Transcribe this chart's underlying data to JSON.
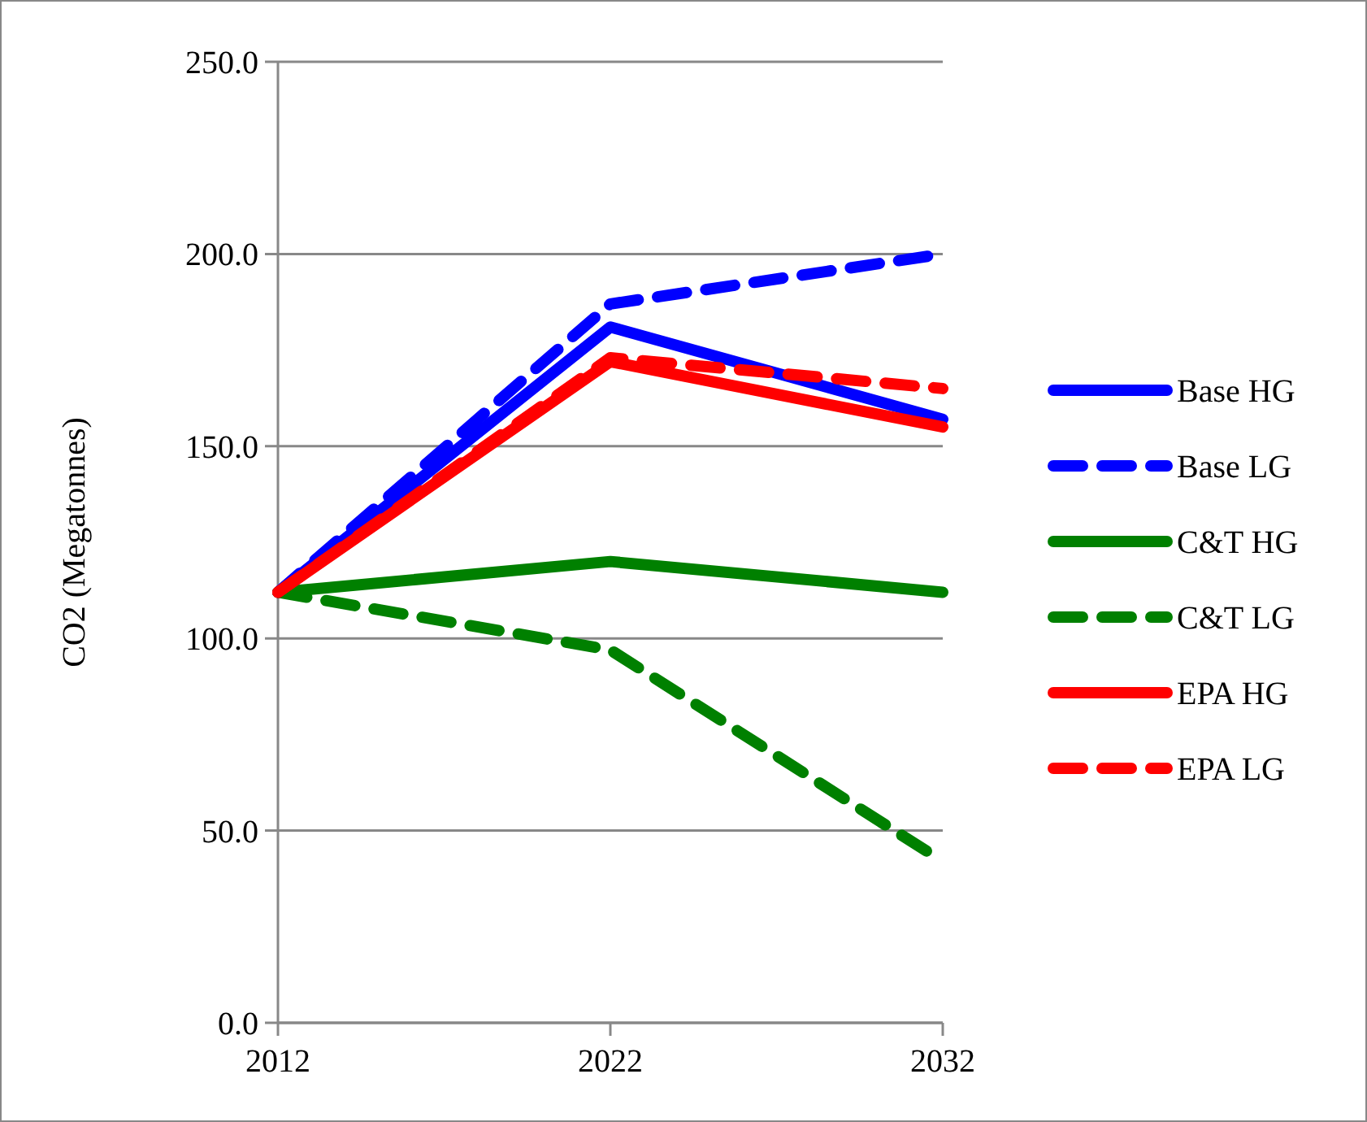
{
  "chart_data": {
    "type": "line",
    "ylabel": "CO2 (Megatonnes)",
    "x": [
      2012,
      2022,
      2032
    ],
    "xlim": [
      2012,
      2032
    ],
    "xticks": [
      2012,
      2022,
      2032
    ],
    "ylim": [
      0,
      250
    ],
    "yticks": [
      {
        "value": 0,
        "label": "0.0"
      },
      {
        "value": 50,
        "label": "50.0"
      },
      {
        "value": 100,
        "label": "100.0"
      },
      {
        "value": 150,
        "label": "150.0"
      },
      {
        "value": 200,
        "label": "200.0"
      },
      {
        "value": 250,
        "label": "250.0"
      }
    ],
    "grid": "y",
    "legend": "right",
    "marker": "none",
    "series": [
      {
        "name": "Base HG",
        "color": "#0000ff",
        "line_style": "solid",
        "values": [
          112,
          181,
          157
        ]
      },
      {
        "name": "Base LG",
        "color": "#0000ff",
        "line_style": "dashed",
        "values": [
          112,
          187,
          200
        ]
      },
      {
        "name": "C&T HG",
        "color": "#008000",
        "line_style": "solid",
        "values": [
          112,
          120,
          112
        ]
      },
      {
        "name": "C&T LG",
        "color": "#008000",
        "line_style": "dashed",
        "values": [
          112,
          97,
          42
        ]
      },
      {
        "name": "EPA HG",
        "color": "#ff0000",
        "line_style": "solid",
        "values": [
          112,
          172,
          155
        ]
      },
      {
        "name": "EPA LG",
        "color": "#ff0000",
        "line_style": "dashed",
        "values": [
          112,
          173,
          165
        ]
      }
    ]
  }
}
